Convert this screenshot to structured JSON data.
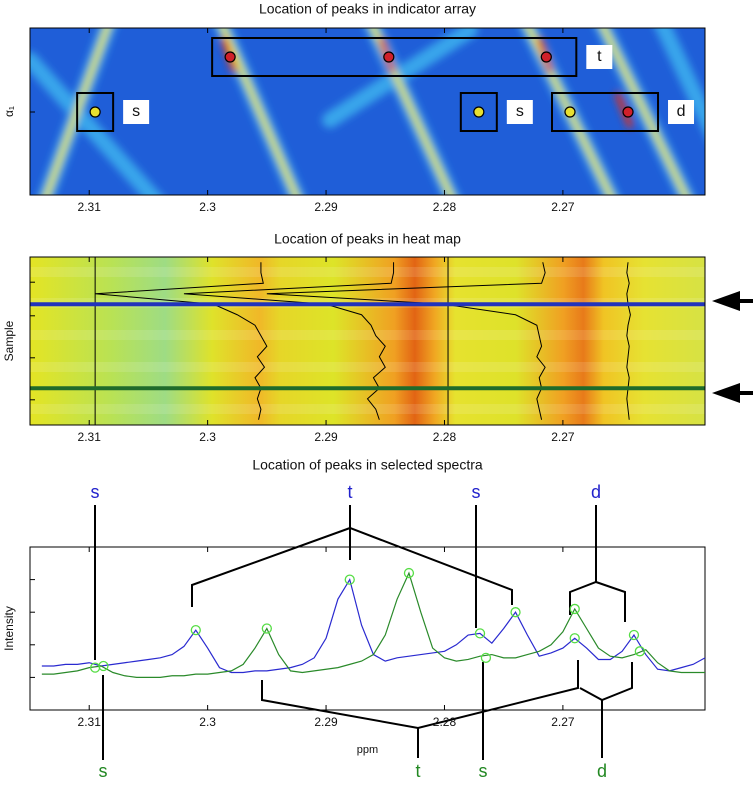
{
  "chart_data": [
    {
      "type": "indicator",
      "title": "Location of peaks in indicator array",
      "ylabel": "α₁",
      "xlim": [
        2.315,
        2.258
      ],
      "xticks": [
        2.31,
        2.3,
        2.29,
        2.28,
        2.27
      ],
      "groups": [
        {
          "label": "s",
          "x": [
            2.3095
          ]
        },
        {
          "label": "t",
          "x": [
            2.2981,
            2.2847,
            2.2714
          ]
        },
        {
          "label": "s",
          "x": [
            2.2771
          ]
        },
        {
          "label": "d",
          "x": [
            2.2694,
            2.2645
          ]
        }
      ]
    },
    {
      "type": "traces",
      "title": "Location of peaks in heat map",
      "ylabel": "Sample",
      "xlim": [
        2.315,
        2.258
      ],
      "xticks": [
        2.31,
        2.3,
        2.29,
        2.28,
        2.27
      ],
      "ylim": [
        0,
        16
      ],
      "vlines": [
        2.3095,
        2.2797
      ],
      "traces": [
        {
          "values": [
            2.2955,
            2.2955,
            2.2953,
            2.3095,
            2.2995,
            2.2975,
            2.296,
            2.2955,
            2.295,
            2.2958,
            2.2952,
            2.296,
            2.2955,
            2.2958,
            2.2955,
            2.2957
          ]
        },
        {
          "values": [
            2.2843,
            2.2843,
            2.2845,
            2.302,
            2.29,
            2.287,
            2.2862,
            2.2858,
            2.285,
            2.2855,
            2.285,
            2.286,
            2.2855,
            2.2865,
            2.2858,
            2.2855
          ]
        },
        {
          "values": [
            2.2717,
            2.2715,
            2.2718,
            2.295,
            2.28,
            2.274,
            2.2722,
            2.272,
            2.2718,
            2.2722,
            2.2715,
            2.272,
            2.2718,
            2.2722,
            2.272,
            2.2718
          ]
        },
        {
          "values": [
            2.2645,
            2.2646,
            2.2644,
            2.2646,
            2.2645,
            2.2643,
            2.2645,
            2.2646,
            2.2644,
            2.2645,
            2.2646,
            2.2644,
            2.2645,
            2.2646,
            2.2645,
            2.2644
          ]
        }
      ],
      "selected": [
        {
          "row": 4,
          "color": "#2233bb"
        },
        {
          "row": 12,
          "color": "#1f6b2a"
        }
      ]
    },
    {
      "type": "line",
      "title": "Location of peaks in selected spectra",
      "xlabel": "ppm",
      "ylabel": "Intensity",
      "xlim": [
        2.315,
        2.258
      ],
      "xticks": [
        2.31,
        2.3,
        2.29,
        2.28,
        2.27
      ],
      "ylim": [
        0,
        5
      ],
      "yticks": [
        1,
        2,
        3,
        4
      ],
      "x": [
        2.314,
        2.313,
        2.312,
        2.311,
        2.31,
        2.309,
        2.308,
        2.307,
        2.306,
        2.305,
        2.304,
        2.303,
        2.302,
        2.301,
        2.3,
        2.299,
        2.298,
        2.297,
        2.296,
        2.295,
        2.294,
        2.293,
        2.292,
        2.291,
        2.29,
        2.289,
        2.288,
        2.287,
        2.286,
        2.285,
        2.284,
        2.283,
        2.282,
        2.281,
        2.28,
        2.279,
        2.278,
        2.277,
        2.276,
        2.275,
        2.274,
        2.273,
        2.272,
        2.271,
        2.27,
        2.269,
        2.268,
        2.267,
        2.266,
        2.265,
        2.264,
        2.263,
        2.262,
        2.261,
        2.26,
        2.259,
        2.258
      ],
      "series": [
        {
          "color": "#2a2ad0",
          "values": [
            1.35,
            1.35,
            1.4,
            1.4,
            1.45,
            1.35,
            1.4,
            1.45,
            1.5,
            1.55,
            1.6,
            1.7,
            1.95,
            2.45,
            1.9,
            1.3,
            1.15,
            1.15,
            1.2,
            1.2,
            1.25,
            1.3,
            1.4,
            1.6,
            2.2,
            3.4,
            4.0,
            2.6,
            1.7,
            1.5,
            1.6,
            1.65,
            1.7,
            1.75,
            1.8,
            2.0,
            2.3,
            2.35,
            2.05,
            2.5,
            3.0,
            2.3,
            1.65,
            1.75,
            1.9,
            2.2,
            1.9,
            1.55,
            1.55,
            1.8,
            2.3,
            1.7,
            1.25,
            1.2,
            1.3,
            1.4,
            1.6
          ],
          "peaks": {
            "x": [
              2.3095,
              2.301,
              2.288,
              2.277,
              2.274,
              2.269,
              2.264
            ],
            "values": [
              1.3,
              2.45,
              4.0,
              2.35,
              3.0,
              2.2,
              2.3
            ]
          }
        },
        {
          "color": "#2a8a2a",
          "values": [
            1.1,
            1.1,
            1.15,
            1.2,
            1.3,
            1.35,
            1.15,
            1.05,
            1.0,
            1.0,
            1.0,
            1.05,
            1.05,
            1.1,
            1.1,
            1.15,
            1.2,
            1.4,
            1.9,
            2.5,
            1.7,
            1.2,
            1.15,
            1.2,
            1.25,
            1.3,
            1.4,
            1.5,
            1.7,
            2.3,
            3.4,
            4.2,
            3.0,
            1.9,
            1.6,
            1.5,
            1.55,
            1.65,
            1.7,
            1.6,
            1.6,
            1.7,
            1.8,
            2.0,
            2.4,
            3.1,
            2.5,
            1.9,
            1.65,
            1.6,
            1.7,
            1.85,
            1.45,
            1.2,
            1.15,
            1.15,
            1.15
          ],
          "peaks": {
            "x": [
              2.3088,
              2.295,
              2.283,
              2.2765,
              2.269,
              2.2635
            ],
            "values": [
              1.35,
              2.5,
              4.2,
              1.6,
              3.1,
              1.8
            ]
          }
        }
      ],
      "top_labels": {
        "color": "#2222cc",
        "texts": [
          "s",
          "t",
          "s",
          "d"
        ]
      },
      "bottom_labels": {
        "color": "#228822",
        "texts": [
          "s",
          "t",
          "s",
          "d"
        ]
      }
    }
  ]
}
